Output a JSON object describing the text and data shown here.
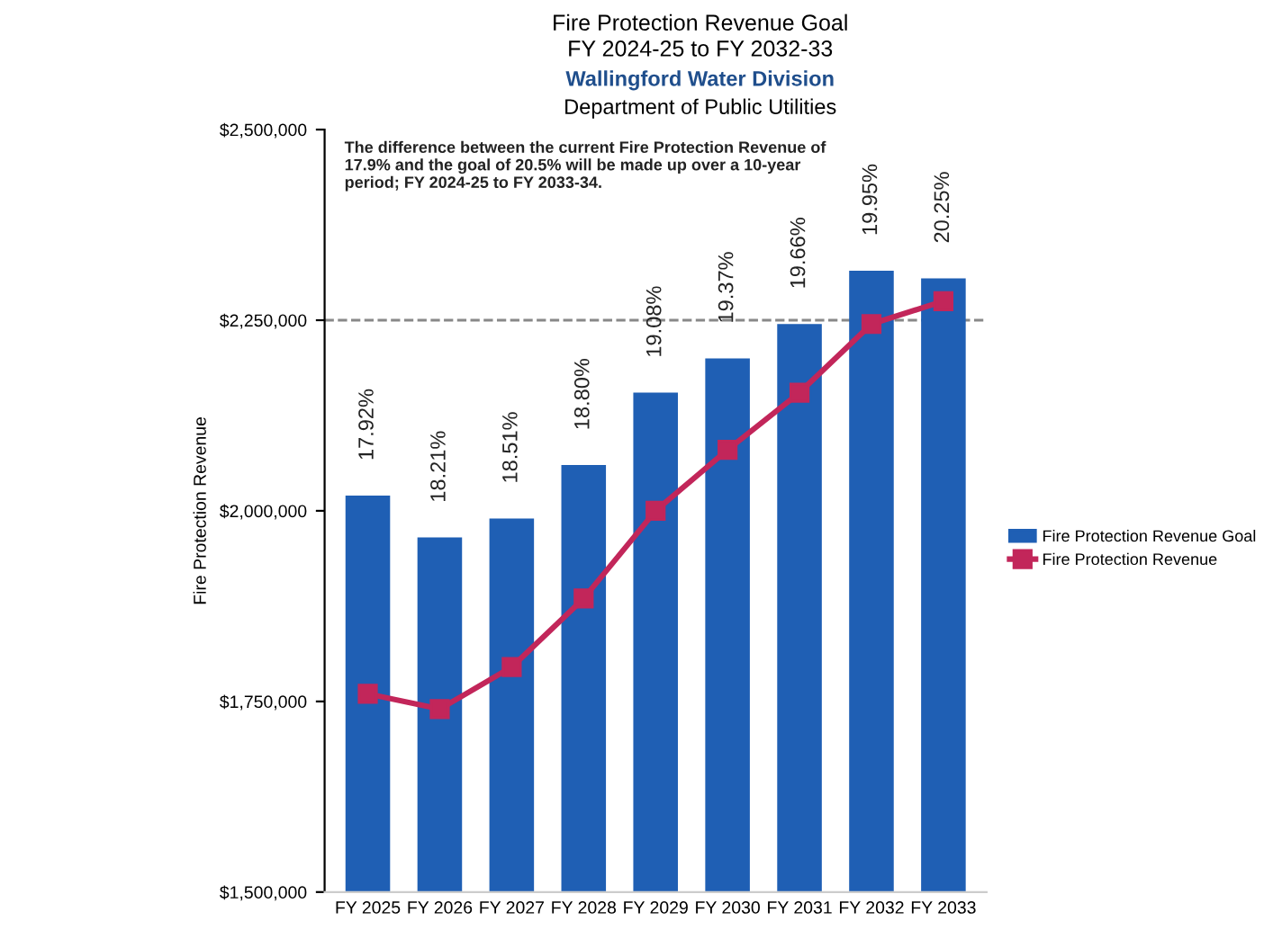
{
  "chart_data": {
    "type": "bar",
    "title": "Fire Protection Revenue Goal\nFY 2024-25 to FY 2032-33",
    "subtitle": "Wallingford Water Division",
    "ylabel": "Fire Protection Revenue",
    "annotations": [
      "Department of Public Utilities",
      "The difference between the current Fire Protection Revenue of\n17.9% and the goal of 20.5% will be made up over a 10-year\nperiod; FY 2024-25 to FY 2033-34.",
      {
        "text": "17.92%",
        "x": "FY 2025",
        "y": 2020000
      },
      {
        "text": "18.21%",
        "x": "FY 2026",
        "y": 1965000
      },
      {
        "text": "18.51%",
        "x": "FY 2027",
        "y": 1990000
      },
      {
        "text": "18.80%",
        "x": "FY 2028",
        "y": 2060000
      },
      {
        "text": "19.08%",
        "x": "FY 2029",
        "y": 2155000
      },
      {
        "text": "19.37%",
        "x": "FY 2030",
        "y": 2200000
      },
      {
        "text": "19.66%",
        "x": "FY 2031",
        "y": 2245000
      },
      {
        "text": "19.95%",
        "x": "FY 2032",
        "y": 2315000
      },
      {
        "text": "20.25%",
        "x": "FY 2033",
        "y": 2305000
      }
    ],
    "categories": [
      "FY 2025",
      "FY 2026",
      "FY 2027",
      "FY 2028",
      "FY 2029",
      "FY 2030",
      "FY 2031",
      "FY 2032",
      "FY 2033"
    ],
    "series": [
      {
        "name": "Fire Protection Revenue Goal",
        "color": "#1f5fb4",
        "values": [
          2020000,
          1965000,
          1990000,
          2060000,
          2155000,
          2200000,
          2245000,
          2315000,
          2305000
        ]
      },
      {
        "name": "Fire Protection Revenue",
        "type": "line",
        "color": "#c2265a",
        "marker": "square",
        "line_style": "solid",
        "values": [
          1760000,
          1740000,
          1795000,
          1885000,
          2000000,
          2080000,
          2155000,
          2245000,
          2275000
        ]
      }
    ],
    "ylim": [
      1500000,
      2500000
    ],
    "yticks": [
      {
        "value": 1500000,
        "label": "$1,500,000"
      },
      {
        "value": 1750000,
        "label": "$1,750,000"
      },
      {
        "value": 2000000,
        "label": "$2,000,000"
      },
      {
        "value": 2250000,
        "label": "$2,250,000"
      },
      {
        "value": 2500000,
        "label": "$2,500,000"
      }
    ],
    "ref_lines": [
      {
        "axis": "y",
        "value": 2250000,
        "color": "#888888",
        "line_style": "dashed"
      }
    ],
    "legend": "right",
    "grid": false
  }
}
